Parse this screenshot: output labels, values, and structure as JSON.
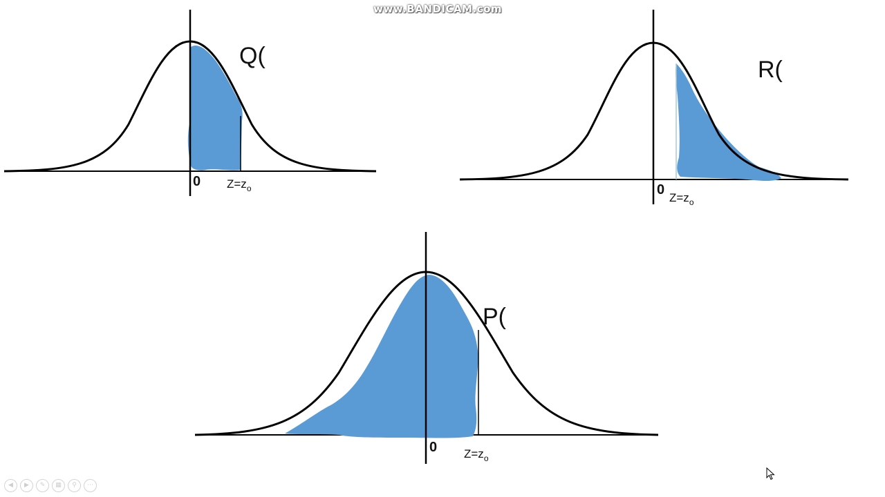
{
  "watermark": "www.BANDICAM.com",
  "colors": {
    "shade": "#5b9bd5",
    "curve": "#000000",
    "background": "#ffffff"
  },
  "panels": {
    "q": {
      "label": "Q(",
      "origin": "0",
      "z_main": "Z=z",
      "z_sub": "o"
    },
    "r": {
      "label": "R(",
      "origin": "0",
      "z_main": "Z=z",
      "z_sub": "o"
    },
    "p": {
      "label": "P(",
      "origin": "0",
      "z_main": "Z=z",
      "z_sub": "o"
    }
  },
  "toolbar": {
    "icons": [
      "previous-icon",
      "next-icon",
      "pen-icon",
      "slides-icon",
      "zoom-icon",
      "more-icon"
    ]
  }
}
